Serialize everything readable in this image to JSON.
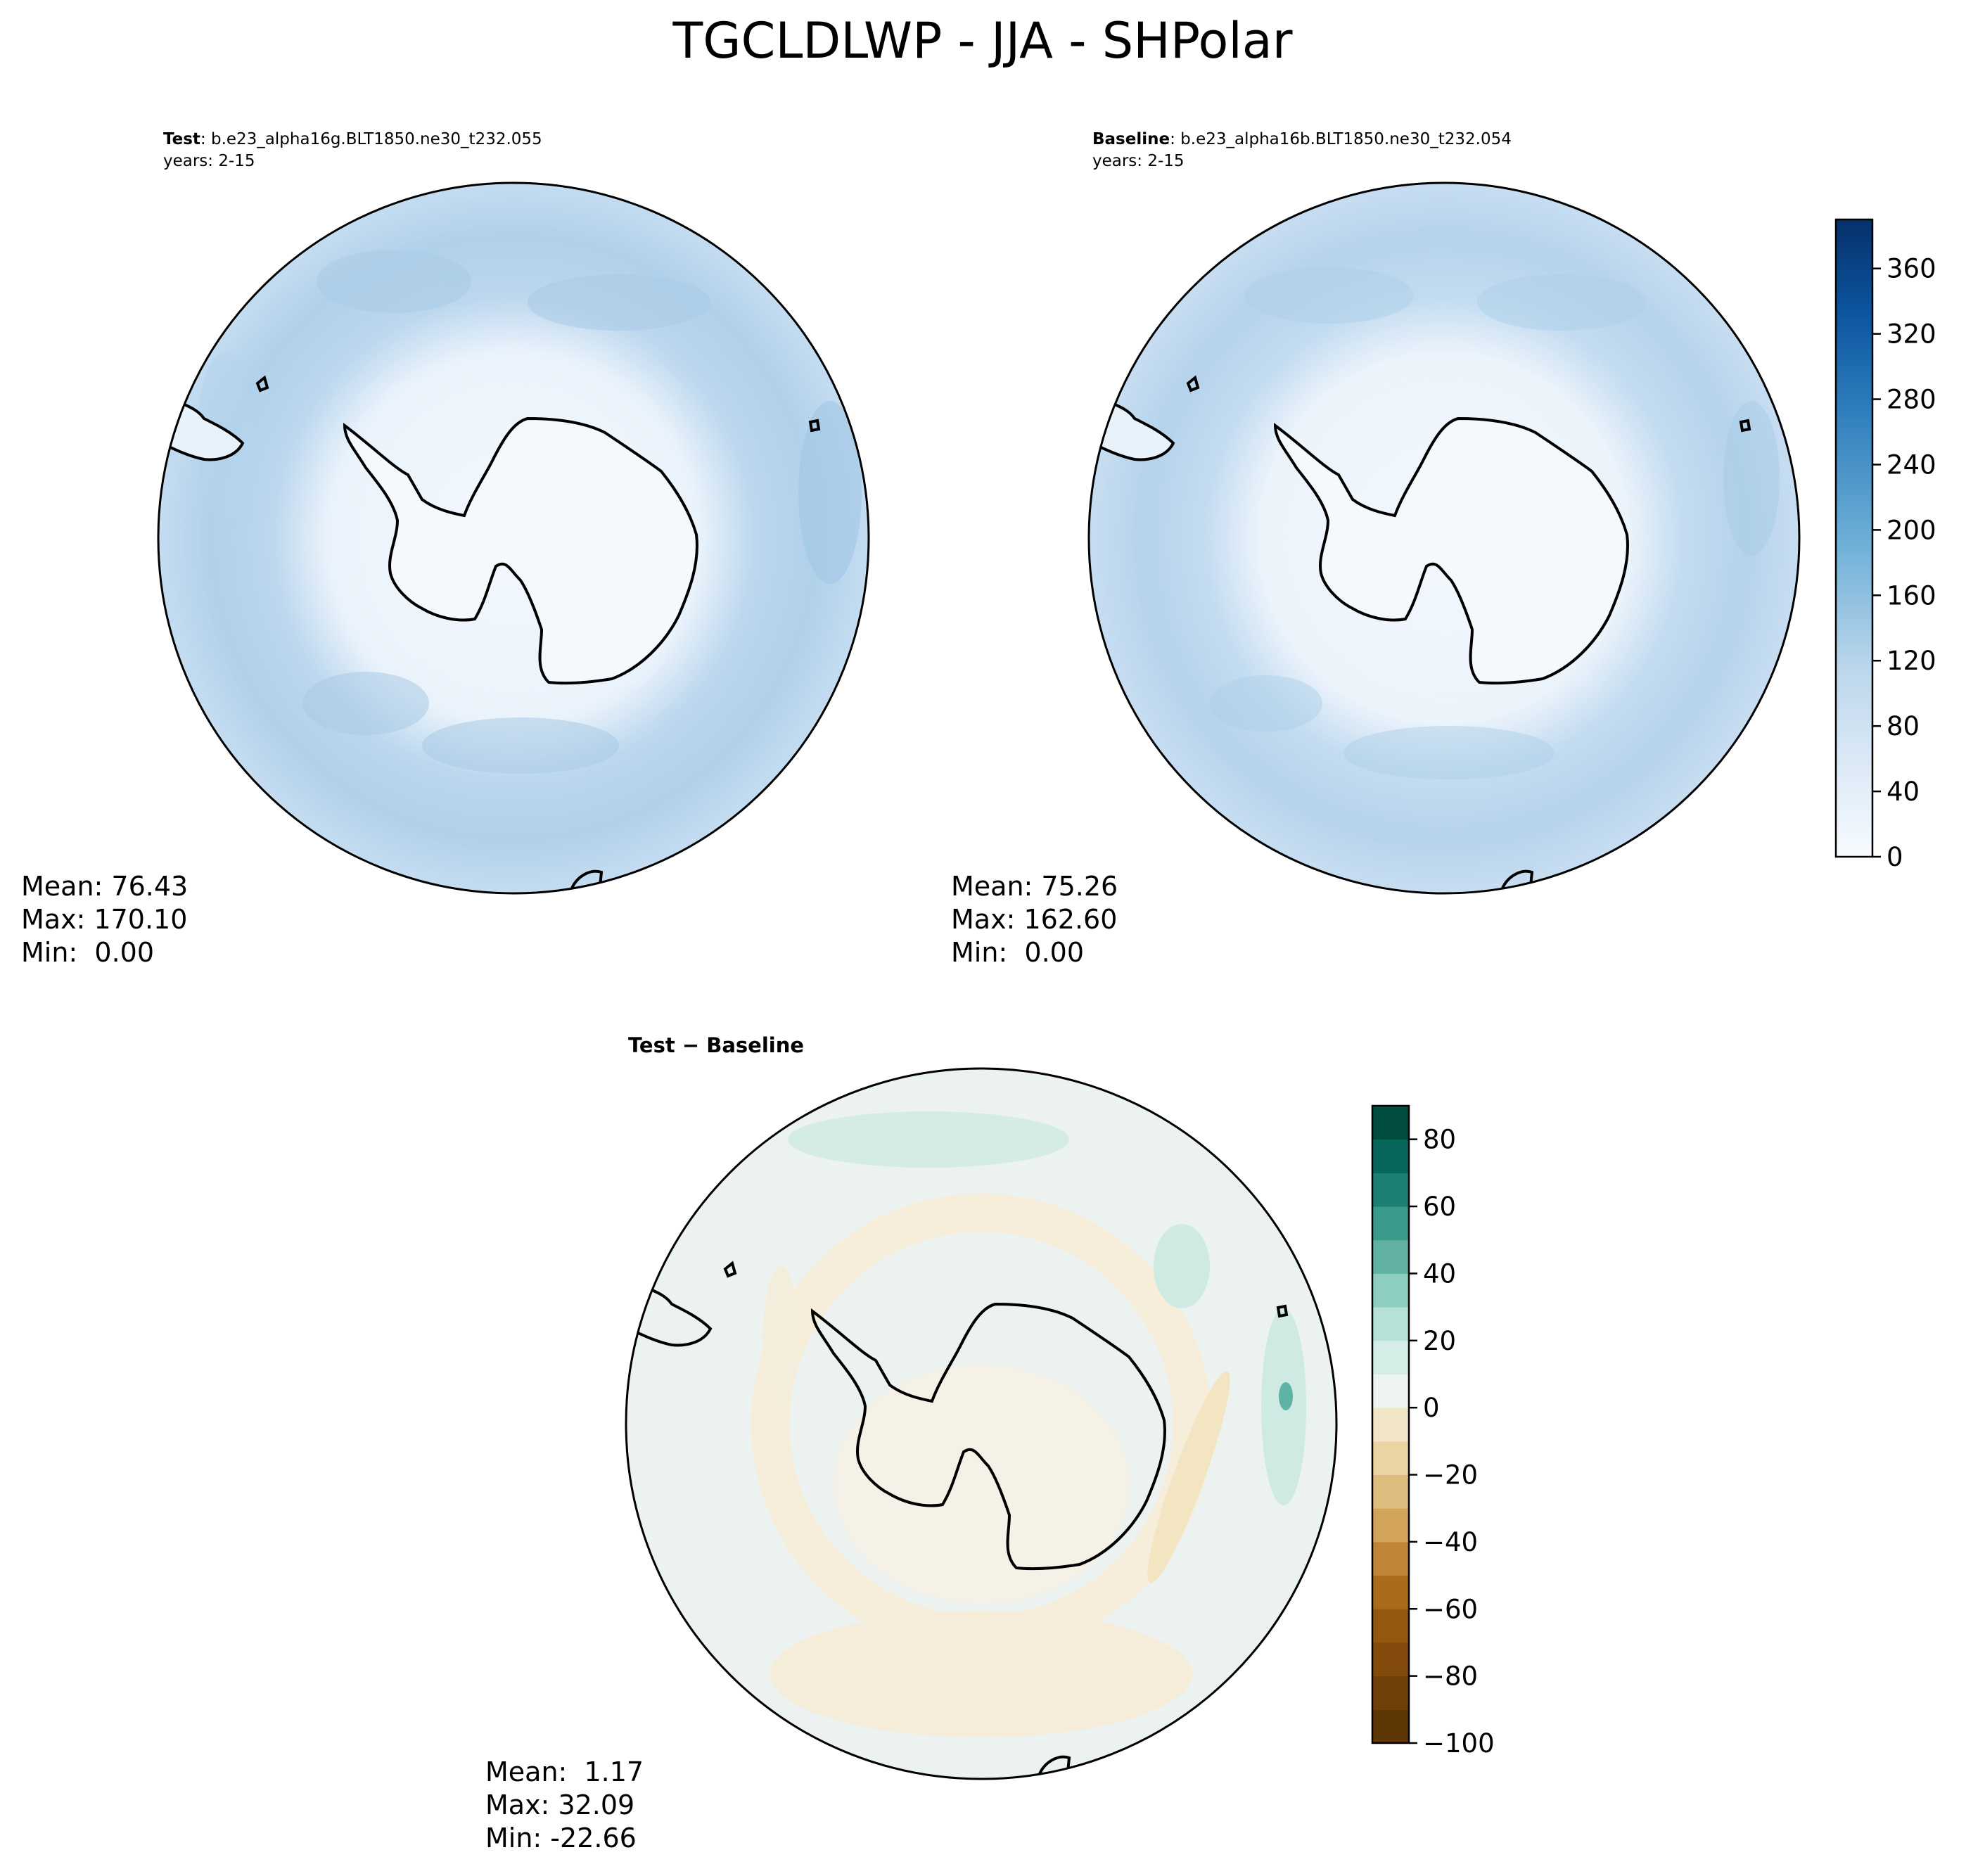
{
  "title": "TGCLDLWP - JJA - SHPolar",
  "panels": {
    "test": {
      "label_bold": "Test",
      "label_rest": ": b.e23_alpha16g.BLT1850.ne30_t232.055",
      "years": "years: 2-15",
      "stats": {
        "mean": "Mean: 76.43",
        "max": "Max: 170.10",
        "min": "Min:  0.00"
      }
    },
    "baseline": {
      "label_bold": "Baseline",
      "label_rest": ": b.e23_alpha16b.BLT1850.ne30_t232.054",
      "years": "years: 2-15",
      "stats": {
        "mean": "Mean: 75.26",
        "max": "Max: 162.60",
        "min": "Min:  0.00"
      }
    },
    "diff": {
      "label_bold": "Test − Baseline",
      "stats": {
        "mean": "Mean:  1.17",
        "max": "Max: 32.09",
        "min": "Min: -22.66"
      }
    }
  },
  "colorbars": {
    "main": {
      "ticks": [
        "0",
        "40",
        "80",
        "120",
        "160",
        "200",
        "240",
        "280",
        "320",
        "360"
      ],
      "range": [
        0,
        390
      ],
      "colors": [
        "#f7fbff",
        "#08306b"
      ]
    },
    "diff": {
      "ticks": [
        "−100",
        "−80",
        "−60",
        "−40",
        "−20",
        "0",
        "20",
        "40",
        "60",
        "80"
      ],
      "range": [
        -100,
        90
      ],
      "colors": [
        "#543005",
        "#f5f5f5",
        "#003c30"
      ]
    }
  },
  "colors": {
    "ocean_test": "#bcd6ec",
    "land": "#f4f9fe",
    "diff_field": "#ebf2f0",
    "diff_negative": "#f6eedb",
    "diff_positive": "#cfeae3"
  }
}
